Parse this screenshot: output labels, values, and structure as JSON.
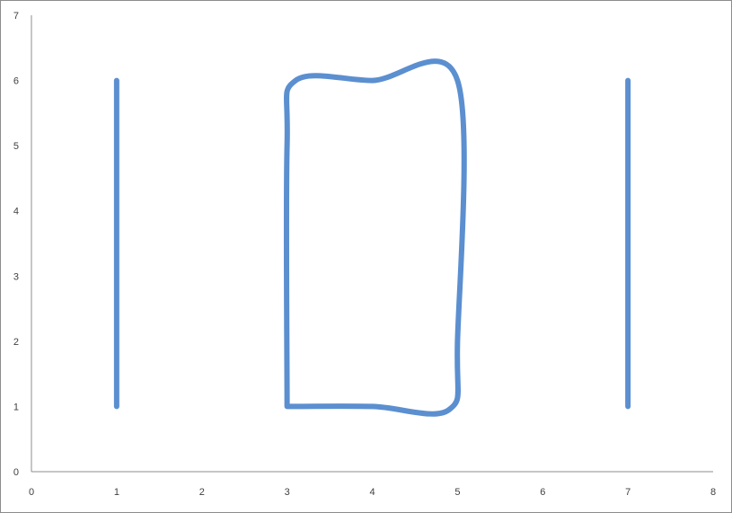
{
  "chart_data": {
    "type": "scatter",
    "title": "",
    "xlabel": "",
    "ylabel": "",
    "xlim": [
      0,
      8
    ],
    "ylim": [
      0,
      7
    ],
    "x_ticks": [
      "0",
      "1",
      "2",
      "3",
      "4",
      "5",
      "6",
      "7",
      "8"
    ],
    "y_ticks": [
      "0",
      "1",
      "2",
      "3",
      "4",
      "5",
      "6",
      "7"
    ],
    "grid": false,
    "legend": "none",
    "line_color": "#5b8fd0",
    "axis_color": "#8c8c8c",
    "series": [
      {
        "smooth": false,
        "points": [
          [
            1,
            1
          ],
          [
            1,
            6
          ]
        ]
      },
      {
        "smooth": true,
        "points": [
          [
            3,
            1
          ],
          [
            4,
            1
          ],
          [
            4.9,
            0.95
          ],
          [
            5,
            2
          ],
          [
            5,
            6
          ],
          [
            4,
            6
          ],
          [
            3.1,
            6
          ],
          [
            3,
            5
          ],
          [
            3,
            1
          ]
        ]
      },
      {
        "smooth": false,
        "points": [
          [
            7,
            1
          ],
          [
            7,
            6
          ]
        ]
      }
    ]
  }
}
